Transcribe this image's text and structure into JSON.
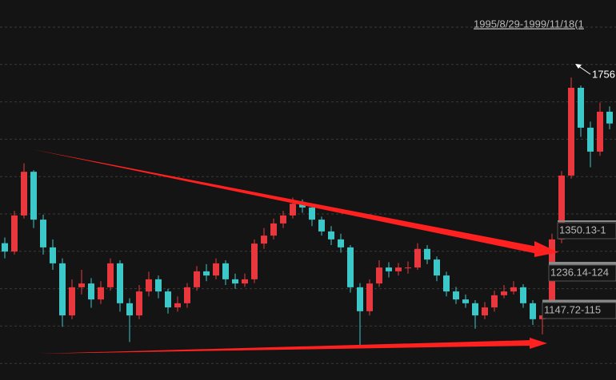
{
  "chart_data": {
    "type": "candlestick",
    "period_label": "1995/8/29-1999/11/18(1",
    "range_labels": [
      "1350.13-1",
      "1236.14-124",
      "1147.72-115"
    ],
    "up_color": "#e8383d",
    "down_color": "#3cc8c8",
    "ylim": [
      960,
      1960
    ],
    "open": [
      1320,
      1298,
      1393,
      1508,
      1382,
      1309,
      1267,
      1130,
      1204,
      1214,
      1172,
      1204,
      1267,
      1162,
      1130,
      1193,
      1225,
      1193,
      1151,
      1162,
      1204,
      1246,
      1235,
      1267,
      1225,
      1214,
      1225,
      1319,
      1340,
      1372,
      1393,
      1424,
      1414,
      1382,
      1351,
      1330,
      1309,
      1204,
      1141,
      1214,
      1256,
      1246,
      1256,
      1256,
      1305,
      1277,
      1235,
      1193,
      1172,
      1162,
      1130,
      1151,
      1183,
      1193,
      1204,
      1162,
      1120,
      1130,
      1330,
      1498,
      1729,
      1624,
      1561,
      1666
    ],
    "high": [
      1335,
      1405,
      1530,
      1512,
      1395,
      1330,
      1280,
      1225,
      1250,
      1228,
      1220,
      1280,
      1275,
      1175,
      1210,
      1245,
      1235,
      1200,
      1180,
      1215,
      1260,
      1265,
      1280,
      1275,
      1240,
      1240,
      1330,
      1360,
      1385,
      1405,
      1440,
      1435,
      1420,
      1390,
      1365,
      1345,
      1315,
      1215,
      1225,
      1275,
      1270,
      1268,
      1272,
      1320,
      1315,
      1285,
      1245,
      1205,
      1185,
      1170,
      1165,
      1195,
      1210,
      1220,
      1212,
      1170,
      1145,
      1345,
      1510,
      1756,
      1735,
      1640,
      1690,
      1680
    ],
    "low": [
      1280,
      1290,
      1385,
      1360,
      1290,
      1250,
      1100,
      1120,
      1185,
      1150,
      1160,
      1195,
      1140,
      1060,
      1120,
      1180,
      1175,
      1135,
      1140,
      1150,
      1195,
      1220,
      1225,
      1210,
      1200,
      1205,
      1215,
      1305,
      1330,
      1360,
      1385,
      1400,
      1365,
      1340,
      1315,
      1295,
      1190,
      1050,
      1130,
      1205,
      1230,
      1235,
      1240,
      1250,
      1265,
      1220,
      1180,
      1160,
      1150,
      1095,
      1120,
      1140,
      1175,
      1185,
      1150,
      1105,
      1080,
      1125,
      1320,
      1490,
      1600,
      1520,
      1550,
      1620
    ],
    "close": [
      1298,
      1393,
      1508,
      1382,
      1309,
      1267,
      1130,
      1204,
      1214,
      1172,
      1204,
      1267,
      1162,
      1130,
      1193,
      1225,
      1193,
      1151,
      1162,
      1204,
      1246,
      1235,
      1267,
      1225,
      1214,
      1225,
      1319,
      1340,
      1372,
      1393,
      1424,
      1414,
      1382,
      1351,
      1330,
      1309,
      1204,
      1141,
      1214,
      1256,
      1246,
      1256,
      1256,
      1305,
      1277,
      1235,
      1193,
      1172,
      1162,
      1130,
      1151,
      1183,
      1193,
      1204,
      1162,
      1120,
      1130,
      1330,
      1498,
      1729,
      1624,
      1561,
      1666,
      1635
    ]
  }
}
